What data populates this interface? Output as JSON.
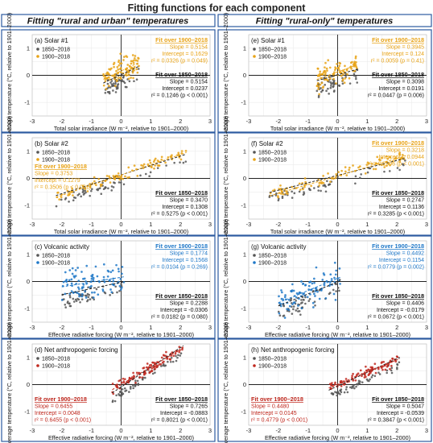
{
  "figure": {
    "title": "Fitting functions for each component",
    "left_header": "Fitting \"rural and urban\" temperatures",
    "right_header": "Fitting \"rural-only\" temperatures",
    "colors": {
      "border": "#2c5aa0",
      "title": "#222222",
      "older": "#555555"
    }
  },
  "chart_data": [
    {
      "type": "scatter",
      "panel": "(a)",
      "title": "Solar #1",
      "xlabel": "Total solar irradiance (W m⁻², relative to 1901–2000)",
      "ylabel": "Average temperature (°C, relative to 1901–2000)",
      "xlim": [
        -3,
        3
      ],
      "ylim": [
        -1.5,
        1.5
      ],
      "xticks": [
        "-3",
        "-2",
        "-1",
        "0",
        "1",
        "2",
        "3"
      ],
      "yticks": [
        "-1",
        "0",
        "1"
      ],
      "accent": "#e8a317",
      "legend": [
        "1850–2018",
        "1900–2018"
      ],
      "fit_a": {
        "title": "Fit over 1900–2018",
        "lines": [
          "Slope = 0.5154",
          "Intercept = 0.1629",
          "r² = 0.0326 (p = 0.049)"
        ],
        "slope": 0.5154,
        "intercept": 0.1629
      },
      "fit_b": {
        "title": "Fit over 1850–2018",
        "lines": [
          "Slope = 0.5154",
          "Intercept = 0.0237",
          "r² = 0.1246 (p < 0.001)"
        ],
        "slope": 0.5154,
        "intercept": 0.0237
      },
      "fitA_pos": "top-right",
      "fitB_pos": "right",
      "cluster": {
        "xmin": -0.6,
        "xmax": 0.6,
        "yspread": 0.45,
        "extra_y_spread": 0.7
      }
    },
    {
      "type": "scatter",
      "panel": "(e)",
      "title": "Solar #1",
      "xlabel": "Total solar irradiance (W m⁻², relative to 1901–2000)",
      "ylabel": "Average temperature (°C, relative to 1901–2000)",
      "xlim": [
        -3,
        3
      ],
      "ylim": [
        -1.5,
        1.5
      ],
      "xticks": [
        "-3",
        "-2",
        "-1",
        "0",
        "1",
        "2",
        "3"
      ],
      "yticks": [
        "-1",
        "0",
        "1"
      ],
      "accent": "#e8a317",
      "legend": [
        "1850–2018",
        "1900–2018"
      ],
      "fit_a": {
        "title": "Fit over 1900–2018",
        "lines": [
          "Slope = 0.3945",
          "Intercept = 0.124",
          "r² = 0.0059 (p = 0.41)"
        ],
        "slope": 0.3945,
        "intercept": 0.124
      },
      "fit_b": {
        "title": "Fit over 1850–2018",
        "lines": [
          "Slope = 0.3098",
          "Intercept = 0.0191",
          "r² = 0.0447 (p = 0.006)"
        ],
        "slope": 0.3098,
        "intercept": 0.0191
      },
      "fitA_pos": "top-right",
      "fitB_pos": "right",
      "cluster": {
        "xmin": -0.7,
        "xmax": 0.7,
        "yspread": 0.45,
        "extra_y_spread": 0.7
      }
    },
    {
      "type": "scatter",
      "panel": "(b)",
      "title": "Solar #2",
      "xlabel": "Total solar irradiance (W m⁻², relative to 1901–2000)",
      "ylabel": "Average temperature (°C, relative to 1901–2000)",
      "xlim": [
        -3,
        3
      ],
      "ylim": [
        -1.5,
        1.5
      ],
      "xticks": [
        "-3",
        "-2",
        "-1",
        "0",
        "1",
        "2",
        "3"
      ],
      "yticks": [
        "-1",
        "0",
        "1"
      ],
      "accent": "#e8a317",
      "legend": [
        "1850–2018",
        "1900–2018"
      ],
      "fit_a": {
        "title": "Fit over 1900–2018",
        "lines": [
          "Slope = 0.3753",
          "Intercept = 0.1279",
          "r² = 0.3506 (p < 0.001)"
        ],
        "slope": 0.3753,
        "intercept": 0.1279
      },
      "fit_b": {
        "title": "Fit over 1850–2018",
        "lines": [
          "Slope = 0.3470",
          "Intercept = 0.1308",
          "r² = 0.5275 (p < 0.001)"
        ],
        "slope": 0.347,
        "intercept": 0.1308
      },
      "fitA_pos": "top-left",
      "fitB_pos": "bottom-right",
      "cluster": {
        "xmin": -2.2,
        "xmax": 2.2,
        "yspread": 0.3,
        "extra_y_spread": 0.3
      }
    },
    {
      "type": "scatter",
      "panel": "(f)",
      "title": "Solar #2",
      "xlabel": "Total solar irradiance (W m⁻², relative to 1901–2000)",
      "ylabel": "Average temperature (°C, relative to 1901–2000)",
      "xlim": [
        -3,
        3
      ],
      "ylim": [
        -1.5,
        1.5
      ],
      "xticks": [
        "-3",
        "-2",
        "-1",
        "0",
        "1",
        "2",
        "3"
      ],
      "yticks": [
        "-1",
        "0",
        "1"
      ],
      "accent": "#e8a317",
      "legend": [
        "1850–2018",
        "1900–2018"
      ],
      "fit_a": {
        "title": "Fit over 1900–2018",
        "lines": [
          "Slope = 0.3218",
          "Intercept = 0.0944",
          "r² = 0.2996 (p < 0.001)"
        ],
        "slope": 0.3218,
        "intercept": 0.0944
      },
      "fit_b": {
        "title": "Fit over 1850–2018",
        "lines": [
          "Slope = 0.2747",
          "Intercept = 0.1136",
          "r² = 0.3285 (p < 0.001)"
        ],
        "slope": 0.2747,
        "intercept": 0.1136
      },
      "fitA_pos": "top-right",
      "fitB_pos": "bottom-right",
      "cluster": {
        "xmin": -2.3,
        "xmax": 2.3,
        "yspread": 0.35,
        "extra_y_spread": 0.35
      }
    },
    {
      "type": "scatter",
      "panel": "(c)",
      "title": "Volcanic activity",
      "xlabel": "Effective radiative forcing (W m⁻², relative to 1901–2000)",
      "ylabel": "Average temperature (°C, relative to 1901–2000)",
      "xlim": [
        -3,
        3
      ],
      "ylim": [
        -1.5,
        1.5
      ],
      "xticks": [
        "-3",
        "-2",
        "-1",
        "0",
        "1",
        "2",
        "3"
      ],
      "yticks": [
        "-1",
        "0",
        "1"
      ],
      "accent": "#1f78c8",
      "legend": [
        "1850–2018",
        "1900–2018"
      ],
      "fit_a": {
        "title": "Fit over 1900–2018",
        "lines": [
          "Slope = 0.1774",
          "Intercept = 0.1568",
          "r² = 0.0104 (p = 0.269)"
        ],
        "slope": 0.1774,
        "intercept": 0.1568
      },
      "fit_b": {
        "title": "Fit over 1850–2018",
        "lines": [
          "Slope = 0.2288",
          "Intercept = -0.0306",
          "r² = 0.0182 (p = 0.080)"
        ],
        "slope": 0.2288,
        "intercept": -0.0306
      },
      "fitA_pos": "top-right",
      "fitB_pos": "bottom-right",
      "cluster": {
        "xmin": -2.0,
        "xmax": 0.1,
        "yspread": 0.45,
        "extra_y_spread": 0.9
      }
    },
    {
      "type": "scatter",
      "panel": "(g)",
      "title": "Volcanic activity",
      "xlabel": "Effective radiative forcing (W m⁻², relative to 1901–2000)",
      "ylabel": "Average temperature (°C, relative to 1901–2000)",
      "xlim": [
        -3,
        3
      ],
      "ylim": [
        -1.5,
        1.5
      ],
      "xticks": [
        "-3",
        "-2",
        "-1",
        "0",
        "1",
        "2",
        "3"
      ],
      "yticks": [
        "-1",
        "0",
        "1"
      ],
      "accent": "#1f78c8",
      "legend": [
        "1850–2018",
        "1900–2018"
      ],
      "fit_a": {
        "title": "Fit over 1900–2018",
        "lines": [
          "Slope = 0.4492",
          "Intercept = 0.1154",
          "r² = 0.0779 (p = 0.002)"
        ],
        "slope": 0.4492,
        "intercept": 0.1154
      },
      "fit_b": {
        "title": "Fit over 1850–2018",
        "lines": [
          "Slope = 0.4406",
          "Intercept = -0.0179",
          "r² = 0.0672 (p < 0.001)"
        ],
        "slope": 0.4406,
        "intercept": -0.0179
      },
      "fitA_pos": "top-right",
      "fitB_pos": "bottom-right",
      "cluster": {
        "xmin": -2.0,
        "xmax": 0.1,
        "yspread": 0.45,
        "extra_y_spread": 0.9
      }
    },
    {
      "type": "scatter",
      "panel": "(d)",
      "title": "Net anthropogenic forcing",
      "xlabel": "Effective radiative forcing (W m⁻², relative to 1901–2000)",
      "ylabel": "Average temperature (°C, relative to 1901–2000)",
      "xlim": [
        -3,
        3
      ],
      "ylim": [
        -1.5,
        1.5
      ],
      "xticks": [
        "-3",
        "-2",
        "-1",
        "0",
        "1",
        "2",
        "3"
      ],
      "yticks": [
        "-1",
        "0",
        "1"
      ],
      "accent": "#c0281e",
      "legend": [
        "1850–2018",
        "1900–2018"
      ],
      "fit_a": {
        "title": "Fit over 1900–2018",
        "lines": [
          "Slope = 0.6455",
          "Intercept = 0.0048",
          "r² = 0.6455 (p < 0.001)"
        ],
        "slope": 0.6455,
        "intercept": 0.0048
      },
      "fit_b": {
        "title": "Fit over 1850–2018",
        "lines": [
          "Slope = 0.7265",
          "Intercept = -0.0883",
          "r² = 0.8021 (p < 0.001)"
        ],
        "slope": 0.7265,
        "intercept": -0.0883
      },
      "fitA_pos": "bottom-left",
      "fitB_pos": "bottom-right",
      "cluster": {
        "xmin": -0.3,
        "xmax": 2.1,
        "yspread": 0.2,
        "extra_y_spread": 0.3
      }
    },
    {
      "type": "scatter",
      "panel": "(h)",
      "title": "Net anthropogenic forcing",
      "xlabel": "Effective radiative forcing (W m⁻², relative to 1901–2000)",
      "ylabel": "Average temperature (°C, relative to 1901–2000)",
      "xlim": [
        -3,
        3
      ],
      "ylim": [
        -1.5,
        1.5
      ],
      "xticks": [
        "-3",
        "-2",
        "-1",
        "0",
        "1",
        "2",
        "3"
      ],
      "yticks": [
        "-1",
        "0",
        "1"
      ],
      "accent": "#c0281e",
      "legend": [
        "1850–2018",
        "1900–2018"
      ],
      "fit_a": {
        "title": "Fit over 1900–2018",
        "lines": [
          "Slope = 0.4480",
          "Intercept = 0.0145",
          "r² = 0.4779 (p < 0.001)"
        ],
        "slope": 0.448,
        "intercept": 0.0145
      },
      "fit_b": {
        "title": "Fit over 1850–2018",
        "lines": [
          "Slope = 0.5047",
          "Intercept = -0.0539",
          "r² = 0.3847 (p < 0.001)"
        ],
        "slope": 0.5047,
        "intercept": -0.0539
      },
      "fitA_pos": "bottom-left",
      "fitB_pos": "bottom-right",
      "cluster": {
        "xmin": -0.3,
        "xmax": 2.1,
        "yspread": 0.25,
        "extra_y_spread": 0.3
      }
    }
  ]
}
